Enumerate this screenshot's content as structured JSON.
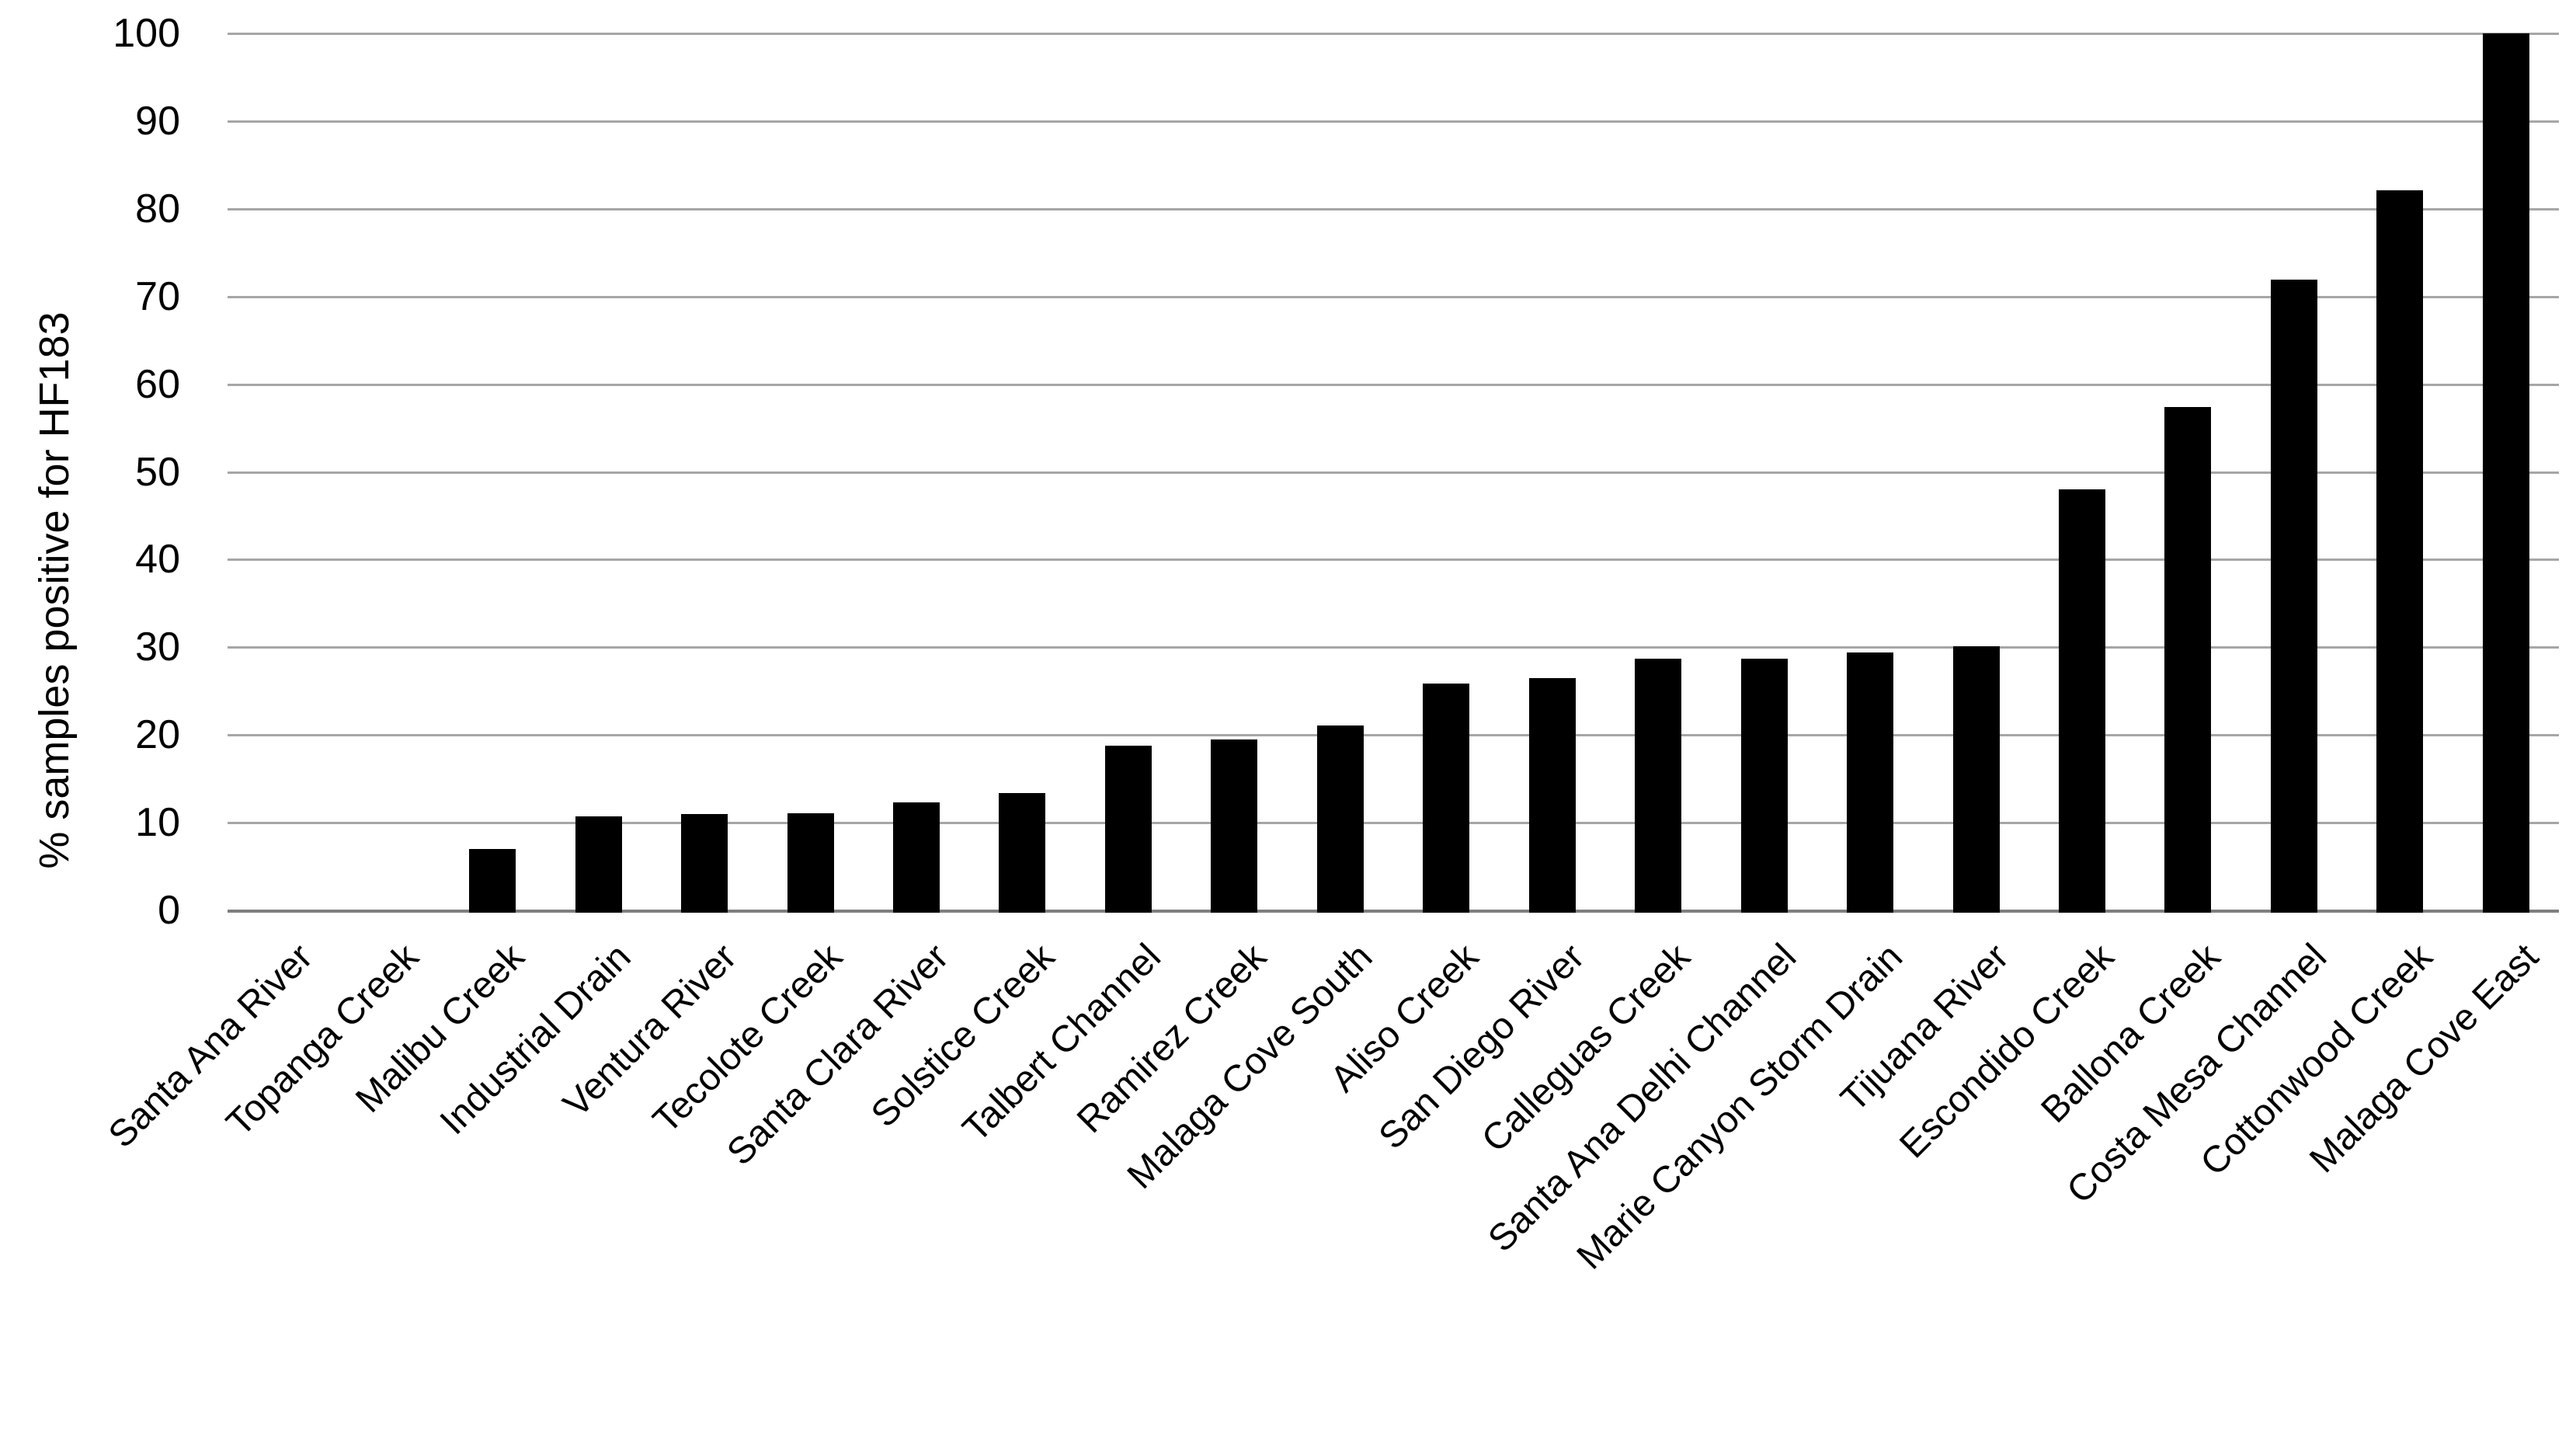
{
  "chart_data": {
    "type": "bar",
    "title": "",
    "xlabel": "",
    "ylabel": "% samples positive for HF183",
    "ylim": [
      0,
      100
    ],
    "yticks": [
      0,
      10,
      20,
      30,
      40,
      50,
      60,
      70,
      80,
      90,
      100
    ],
    "grid": true,
    "legend_position": "none",
    "background_color": "#ffffff",
    "bar_color": "#000000",
    "gridline_color": "#a6a6a6",
    "baseline_color": "#7f7f7f",
    "categories": [
      "Santa Ana River",
      "Topanga Creek",
      "Malibu Creek",
      "Industrial Drain",
      "Ventura River",
      "Tecolote Creek",
      "Santa Clara River",
      "Solstice Creek",
      "Talbert Channel",
      "Ramirez Creek",
      "Malaga Cove South",
      "Aliso Creek",
      "San Diego River",
      "Calleguas Creek",
      "Santa Ana Delhi Channel",
      "Marie Canyon Storm Drain",
      "Tijuana River",
      "Escondido Creek",
      "Ballona Creek",
      "Costa Mesa Channel",
      "Cottonwood Creek",
      "Malaga Cove East"
    ],
    "values": [
      0,
      0,
      7,
      10.7,
      11,
      11.1,
      12.3,
      13.4,
      18.8,
      19.5,
      21.1,
      25.9,
      26.5,
      28.7,
      28.7,
      29.4,
      30.1,
      48,
      57.4,
      71.9,
      82.1,
      100
    ]
  }
}
